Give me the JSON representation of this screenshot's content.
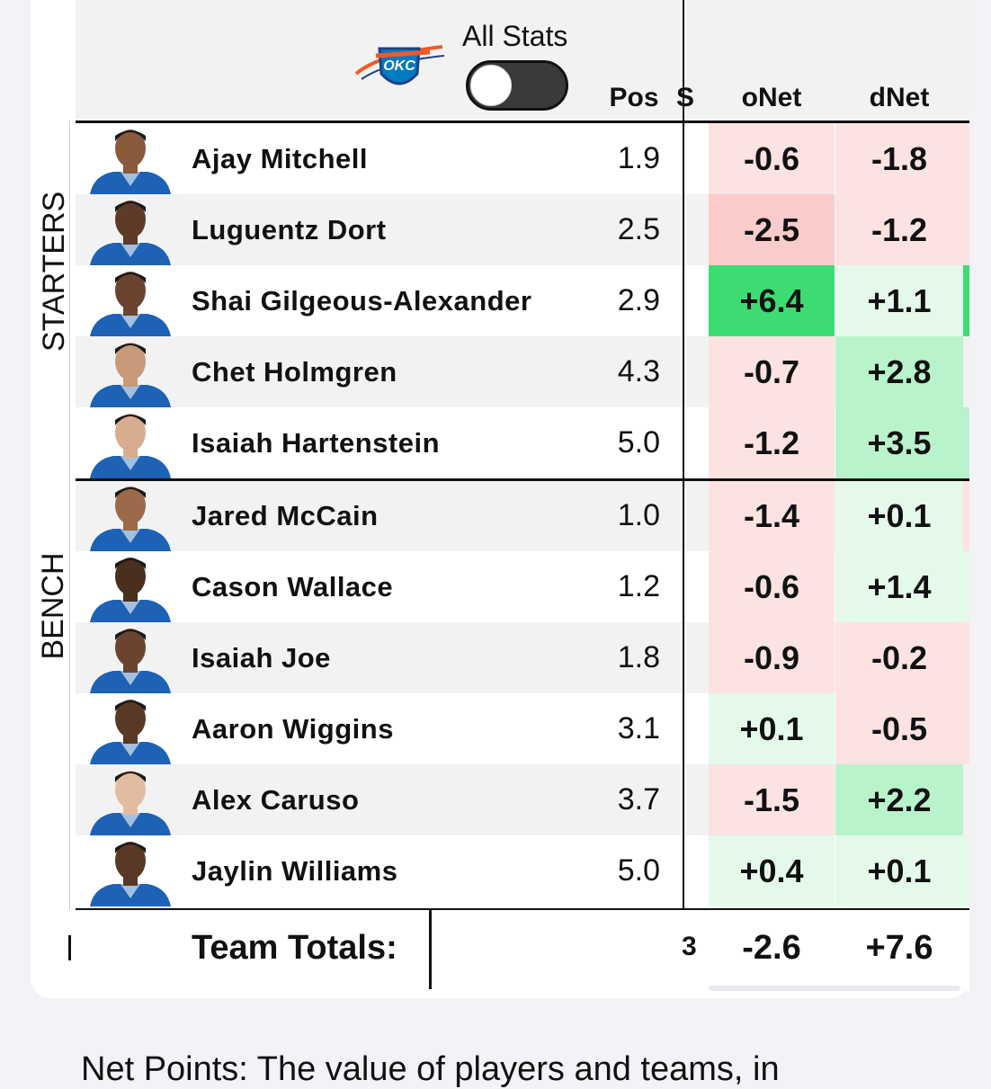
{
  "header": {
    "team_logo_text": "OKC",
    "toggle_label": "All Stats",
    "toggle_on": false,
    "columns": {
      "pos": "Pos",
      "onet": "oNet",
      "dnet": "dNet"
    }
  },
  "sections": {
    "starters": "STARTERS",
    "bench": "BENCH"
  },
  "colors": {
    "green_strong": "#3ddc72",
    "green_medium": "#b9f3cc",
    "green_light": "#e4f9ea",
    "red_medium": "#f9cbcb",
    "red_light": "#fde2e2",
    "neutral": "#ffffff"
  },
  "players": [
    {
      "name": "Ajay Mitchell",
      "pos": "1.9",
      "onet": "-0.6",
      "dnet": "-1.8",
      "group": "starters",
      "onet_color": "#fde2e2",
      "dnet_color": "#fde2e2",
      "edge_color": "#fde2e2"
    },
    {
      "name": "Luguentz Dort",
      "pos": "2.5",
      "onet": "-2.5",
      "dnet": "-1.2",
      "group": "starters",
      "onet_color": "#f9cbcb",
      "dnet_color": "#fde2e2",
      "edge_color": "#fde2e2"
    },
    {
      "name": "Shai Gilgeous-Alexander",
      "pos": "2.9",
      "onet": "+6.4",
      "dnet": "+1.1",
      "group": "starters",
      "onet_color": "#3ddc72",
      "dnet_color": "#e4f9ea",
      "edge_color": "#3ddc72"
    },
    {
      "name": "Chet Holmgren",
      "pos": "4.3",
      "onet": "-0.7",
      "dnet": "+2.8",
      "group": "starters",
      "onet_color": "#fde2e2",
      "dnet_color": "#b9f3cc",
      "edge_color": "#f2f2f2"
    },
    {
      "name": "Isaiah Hartenstein",
      "pos": "5.0",
      "onet": "-1.2",
      "dnet": "+3.5",
      "group": "starters",
      "onet_color": "#fde2e2",
      "dnet_color": "#b9f3cc",
      "edge_color": "#b9f3cc"
    },
    {
      "name": "Jared McCain",
      "pos": "1.0",
      "onet": "-1.4",
      "dnet": "+0.1",
      "group": "bench",
      "onet_color": "#fde2e2",
      "dnet_color": "#e4f9ea",
      "edge_color": "#fde2e2"
    },
    {
      "name": "Cason Wallace",
      "pos": "1.2",
      "onet": "-0.6",
      "dnet": "+1.4",
      "group": "bench",
      "onet_color": "#fde2e2",
      "dnet_color": "#e4f9ea",
      "edge_color": "#e4f9ea"
    },
    {
      "name": "Isaiah Joe",
      "pos": "1.8",
      "onet": "-0.9",
      "dnet": "-0.2",
      "group": "bench",
      "onet_color": "#fde2e2",
      "dnet_color": "#fde2e2",
      "edge_color": "#fde2e2"
    },
    {
      "name": "Aaron Wiggins",
      "pos": "3.1",
      "onet": "+0.1",
      "dnet": "-0.5",
      "group": "bench",
      "onet_color": "#e4f9ea",
      "dnet_color": "#fde2e2",
      "edge_color": "#fde2e2"
    },
    {
      "name": "Alex Caruso",
      "pos": "3.7",
      "onet": "-1.5",
      "dnet": "+2.2",
      "group": "bench",
      "onet_color": "#fde2e2",
      "dnet_color": "#b9f3cc",
      "edge_color": "#f2f2f2"
    },
    {
      "name": "Jaylin Williams",
      "pos": "5.0",
      "onet": "+0.4",
      "dnet": "+0.1",
      "group": "bench",
      "onet_color": "#e4f9ea",
      "dnet_color": "#e4f9ea",
      "edge_color": "#e4f9ea"
    }
  ],
  "totals": {
    "label": "Team Totals:",
    "onet": "-2.6",
    "dnet": "+7.6"
  },
  "footnote": "Net Points: The value of players and teams, in"
}
